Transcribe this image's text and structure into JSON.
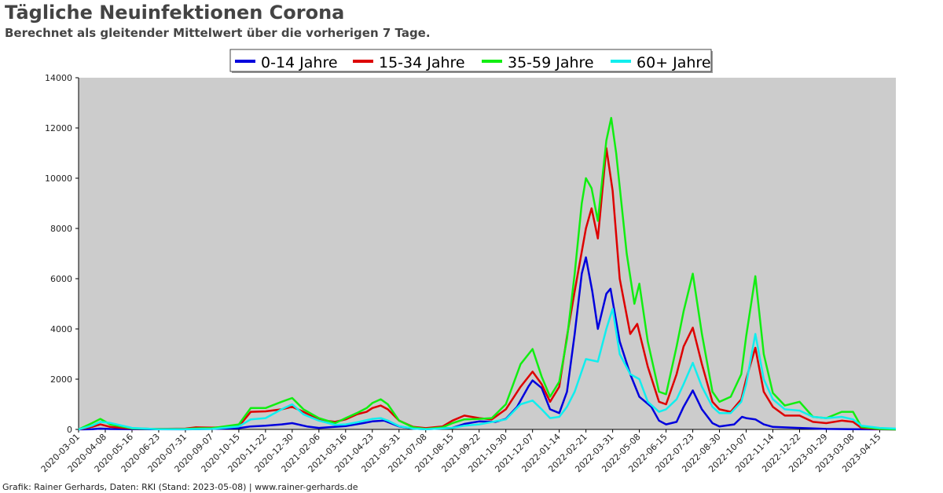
{
  "title": "Tägliche Neuinfektionen Corona",
  "subtitle": "Berechnet als gleitender Mittelwert über die vorherigen 7 Tage.",
  "footer": "Grafik: Rainer Gerhards, Daten: RKI (Stand: 2023-05-08) | www.rainer-gerhards.de",
  "chart_data": {
    "type": "line",
    "plot_background": "#cccccc",
    "xlim": [
      "2020-03-01",
      "2023-05-08"
    ],
    "ylim": [
      0,
      14000
    ],
    "yticks": [
      0,
      2000,
      4000,
      6000,
      8000,
      10000,
      12000,
      14000
    ],
    "xticks": [
      "2020-03-01",
      "2020-04-08",
      "2020-05-16",
      "2020-06-23",
      "2020-07-31",
      "2020-09-07",
      "2020-10-15",
      "2020-11-22",
      "2020-12-30",
      "2021-02-06",
      "2021-03-16",
      "2021-04-23",
      "2021-05-31",
      "2021-07-08",
      "2021-08-15",
      "2021-09-22",
      "2021-10-30",
      "2021-12-07",
      "2022-01-14",
      "2022-02-21",
      "2022-03-31",
      "2022-05-08",
      "2022-06-15",
      "2022-07-23",
      "2022-08-30",
      "2022-10-07",
      "2022-11-14",
      "2022-12-22",
      "2023-01-29",
      "2023-03-08",
      "2023-04-15"
    ],
    "grid": false,
    "legend_position": "top",
    "series": [
      {
        "name": "0-14 Jahre",
        "color": "#0000dd",
        "points": [
          [
            "2020-03-01",
            0
          ],
          [
            "2020-03-20",
            10
          ],
          [
            "2020-04-01",
            30
          ],
          [
            "2020-04-15",
            15
          ],
          [
            "2020-05-16",
            5
          ],
          [
            "2020-07-31",
            3
          ],
          [
            "2020-09-07",
            20
          ],
          [
            "2020-10-15",
            50
          ],
          [
            "2020-11-01",
            120
          ],
          [
            "2020-11-22",
            150
          ],
          [
            "2020-12-15",
            200
          ],
          [
            "2020-12-30",
            250
          ],
          [
            "2021-01-20",
            120
          ],
          [
            "2021-02-06",
            60
          ],
          [
            "2021-03-16",
            130
          ],
          [
            "2021-04-10",
            250
          ],
          [
            "2021-04-23",
            320
          ],
          [
            "2021-05-10",
            350
          ],
          [
            "2021-05-31",
            120
          ],
          [
            "2021-06-20",
            30
          ],
          [
            "2021-07-08",
            10
          ],
          [
            "2021-08-15",
            60
          ],
          [
            "2021-09-01",
            220
          ],
          [
            "2021-09-22",
            320
          ],
          [
            "2021-10-15",
            300
          ],
          [
            "2021-10-30",
            420
          ],
          [
            "2021-11-15",
            900
          ],
          [
            "2021-12-01",
            1700
          ],
          [
            "2021-12-07",
            1950
          ],
          [
            "2021-12-20",
            1650
          ],
          [
            "2022-01-01",
            800
          ],
          [
            "2022-01-14",
            650
          ],
          [
            "2022-01-25",
            1500
          ],
          [
            "2022-02-05",
            3800
          ],
          [
            "2022-02-15",
            6200
          ],
          [
            "2022-02-21",
            6850
          ],
          [
            "2022-03-02",
            5500
          ],
          [
            "2022-03-10",
            4000
          ],
          [
            "2022-03-22",
            5400
          ],
          [
            "2022-03-28",
            5600
          ],
          [
            "2022-04-10",
            3500
          ],
          [
            "2022-04-25",
            2200
          ],
          [
            "2022-05-08",
            1300
          ],
          [
            "2022-05-25",
            900
          ],
          [
            "2022-06-05",
            350
          ],
          [
            "2022-06-15",
            200
          ],
          [
            "2022-06-30",
            300
          ],
          [
            "2022-07-10",
            900
          ],
          [
            "2022-07-23",
            1550
          ],
          [
            "2022-08-05",
            800
          ],
          [
            "2022-08-20",
            250
          ],
          [
            "2022-08-30",
            120
          ],
          [
            "2022-09-20",
            200
          ],
          [
            "2022-10-01",
            500
          ],
          [
            "2022-10-07",
            450
          ],
          [
            "2022-10-20",
            400
          ],
          [
            "2022-11-01",
            200
          ],
          [
            "2022-11-14",
            100
          ],
          [
            "2022-12-22",
            60
          ],
          [
            "2023-01-29",
            20
          ],
          [
            "2023-03-08",
            10
          ],
          [
            "2023-05-08",
            0
          ]
        ]
      },
      {
        "name": "15-34 Jahre",
        "color": "#dd0000",
        "points": [
          [
            "2020-03-01",
            0
          ],
          [
            "2020-03-20",
            100
          ],
          [
            "2020-04-01",
            200
          ],
          [
            "2020-04-15",
            100
          ],
          [
            "2020-05-16",
            30
          ],
          [
            "2020-06-23",
            20
          ],
          [
            "2020-07-31",
            30
          ],
          [
            "2020-08-15",
            80
          ],
          [
            "2020-09-07",
            70
          ],
          [
            "2020-10-15",
            120
          ],
          [
            "2020-11-01",
            700
          ],
          [
            "2020-11-22",
            720
          ],
          [
            "2020-12-15",
            800
          ],
          [
            "2020-12-30",
            900
          ],
          [
            "2021-01-15",
            700
          ],
          [
            "2021-02-06",
            380
          ],
          [
            "2021-03-01",
            300
          ],
          [
            "2021-03-16",
            400
          ],
          [
            "2021-04-01",
            600
          ],
          [
            "2021-04-15",
            700
          ],
          [
            "2021-04-23",
            850
          ],
          [
            "2021-05-05",
            950
          ],
          [
            "2021-05-15",
            800
          ],
          [
            "2021-05-31",
            350
          ],
          [
            "2021-06-20",
            100
          ],
          [
            "2021-07-08",
            50
          ],
          [
            "2021-08-01",
            120
          ],
          [
            "2021-08-15",
            350
          ],
          [
            "2021-09-01",
            550
          ],
          [
            "2021-09-22",
            450
          ],
          [
            "2021-10-10",
            400
          ],
          [
            "2021-10-30",
            800
          ],
          [
            "2021-11-20",
            1700
          ],
          [
            "2021-12-07",
            2300
          ],
          [
            "2021-12-20",
            1800
          ],
          [
            "2022-01-01",
            1100
          ],
          [
            "2022-01-14",
            1700
          ],
          [
            "2022-01-25",
            3700
          ],
          [
            "2022-02-05",
            5500
          ],
          [
            "2022-02-21",
            8000
          ],
          [
            "2022-03-01",
            8800
          ],
          [
            "2022-03-10",
            7600
          ],
          [
            "2022-03-22",
            11200
          ],
          [
            "2022-03-31",
            9500
          ],
          [
            "2022-04-10",
            6000
          ],
          [
            "2022-04-25",
            3800
          ],
          [
            "2022-05-05",
            4200
          ],
          [
            "2022-05-20",
            2500
          ],
          [
            "2022-06-05",
            1100
          ],
          [
            "2022-06-15",
            1000
          ],
          [
            "2022-06-30",
            2200
          ],
          [
            "2022-07-10",
            3300
          ],
          [
            "2022-07-23",
            4050
          ],
          [
            "2022-08-05",
            2600
          ],
          [
            "2022-08-20",
            1100
          ],
          [
            "2022-08-30",
            800
          ],
          [
            "2022-09-15",
            700
          ],
          [
            "2022-09-30",
            1200
          ],
          [
            "2022-10-07",
            2000
          ],
          [
            "2022-10-20",
            3250
          ],
          [
            "2022-11-01",
            1500
          ],
          [
            "2022-11-14",
            900
          ],
          [
            "2022-12-01",
            550
          ],
          [
            "2022-12-22",
            550
          ],
          [
            "2023-01-10",
            300
          ],
          [
            "2023-01-29",
            250
          ],
          [
            "2023-02-20",
            350
          ],
          [
            "2023-03-08",
            300
          ],
          [
            "2023-03-20",
            60
          ],
          [
            "2023-04-15",
            10
          ],
          [
            "2023-05-08",
            0
          ]
        ]
      },
      {
        "name": "35-59 Jahre",
        "color": "#11ee11",
        "points": [
          [
            "2020-03-01",
            0
          ],
          [
            "2020-03-20",
            250
          ],
          [
            "2020-04-01",
            420
          ],
          [
            "2020-04-15",
            200
          ],
          [
            "2020-05-16",
            40
          ],
          [
            "2020-06-23",
            15
          ],
          [
            "2020-07-31",
            20
          ],
          [
            "2020-08-15",
            40
          ],
          [
            "2020-09-07",
            50
          ],
          [
            "2020-10-15",
            200
          ],
          [
            "2020-11-01",
            850
          ],
          [
            "2020-11-22",
            850
          ],
          [
            "2020-12-15",
            1100
          ],
          [
            "2020-12-30",
            1250
          ],
          [
            "2021-01-15",
            800
          ],
          [
            "2021-02-06",
            450
          ],
          [
            "2021-03-01",
            250
          ],
          [
            "2021-03-16",
            450
          ],
          [
            "2021-04-01",
            650
          ],
          [
            "2021-04-15",
            850
          ],
          [
            "2021-04-23",
            1050
          ],
          [
            "2021-05-05",
            1200
          ],
          [
            "2021-05-15",
            1000
          ],
          [
            "2021-05-31",
            350
          ],
          [
            "2021-06-20",
            80
          ],
          [
            "2021-07-08",
            20
          ],
          [
            "2021-08-01",
            80
          ],
          [
            "2021-08-15",
            250
          ],
          [
            "2021-09-01",
            400
          ],
          [
            "2021-09-22",
            420
          ],
          [
            "2021-10-10",
            450
          ],
          [
            "2021-10-30",
            1000
          ],
          [
            "2021-11-20",
            2600
          ],
          [
            "2021-12-07",
            3200
          ],
          [
            "2021-12-20",
            2100
          ],
          [
            "2022-01-01",
            1300
          ],
          [
            "2022-01-14",
            1900
          ],
          [
            "2022-01-25",
            3600
          ],
          [
            "2022-02-05",
            6200
          ],
          [
            "2022-02-15",
            9000
          ],
          [
            "2022-02-21",
            10000
          ],
          [
            "2022-03-01",
            9600
          ],
          [
            "2022-03-10",
            8300
          ],
          [
            "2022-03-22",
            11500
          ],
          [
            "2022-03-29",
            12400
          ],
          [
            "2022-04-05",
            11000
          ],
          [
            "2022-04-20",
            7000
          ],
          [
            "2022-05-01",
            5000
          ],
          [
            "2022-05-08",
            5800
          ],
          [
            "2022-05-20",
            3500
          ],
          [
            "2022-06-05",
            1500
          ],
          [
            "2022-06-15",
            1400
          ],
          [
            "2022-06-30",
            3300
          ],
          [
            "2022-07-10",
            4700
          ],
          [
            "2022-07-23",
            6200
          ],
          [
            "2022-08-05",
            3800
          ],
          [
            "2022-08-20",
            1500
          ],
          [
            "2022-08-30",
            1100
          ],
          [
            "2022-09-15",
            1300
          ],
          [
            "2022-09-30",
            2200
          ],
          [
            "2022-10-07",
            3700
          ],
          [
            "2022-10-20",
            6100
          ],
          [
            "2022-11-01",
            3000
          ],
          [
            "2022-11-14",
            1450
          ],
          [
            "2022-12-01",
            950
          ],
          [
            "2022-12-22",
            1100
          ],
          [
            "2023-01-10",
            500
          ],
          [
            "2023-01-29",
            450
          ],
          [
            "2023-02-20",
            700
          ],
          [
            "2023-03-08",
            700
          ],
          [
            "2023-03-20",
            100
          ],
          [
            "2023-04-15",
            20
          ],
          [
            "2023-05-08",
            0
          ]
        ]
      },
      {
        "name": "60+ Jahre",
        "color": "#11eeee",
        "points": [
          [
            "2020-03-01",
            0
          ],
          [
            "2020-03-20",
            150
          ],
          [
            "2020-04-01",
            300
          ],
          [
            "2020-04-15",
            260
          ],
          [
            "2020-05-16",
            60
          ],
          [
            "2020-06-23",
            10
          ],
          [
            "2020-07-31",
            10
          ],
          [
            "2020-09-07",
            20
          ],
          [
            "2020-10-15",
            120
          ],
          [
            "2020-11-01",
            400
          ],
          [
            "2020-11-22",
            450
          ],
          [
            "2020-12-15",
            800
          ],
          [
            "2020-12-30",
            1000
          ],
          [
            "2021-01-15",
            600
          ],
          [
            "2021-02-06",
            350
          ],
          [
            "2021-03-01",
            180
          ],
          [
            "2021-03-16",
            200
          ],
          [
            "2021-04-01",
            280
          ],
          [
            "2021-04-23",
            420
          ],
          [
            "2021-05-05",
            450
          ],
          [
            "2021-05-15",
            350
          ],
          [
            "2021-05-31",
            130
          ],
          [
            "2021-06-20",
            30
          ],
          [
            "2021-07-08",
            10
          ],
          [
            "2021-08-15",
            60
          ],
          [
            "2021-09-01",
            150
          ],
          [
            "2021-09-22",
            200
          ],
          [
            "2021-10-30",
            400
          ],
          [
            "2021-11-20",
            1000
          ],
          [
            "2021-12-07",
            1150
          ],
          [
            "2021-12-20",
            800
          ],
          [
            "2022-01-01",
            450
          ],
          [
            "2022-01-14",
            500
          ],
          [
            "2022-01-25",
            900
          ],
          [
            "2022-02-05",
            1500
          ],
          [
            "2022-02-21",
            2800
          ],
          [
            "2022-03-10",
            2700
          ],
          [
            "2022-03-22",
            4000
          ],
          [
            "2022-03-31",
            4800
          ],
          [
            "2022-04-10",
            3000
          ],
          [
            "2022-04-25",
            2200
          ],
          [
            "2022-05-08",
            2000
          ],
          [
            "2022-05-20",
            1100
          ],
          [
            "2022-06-05",
            700
          ],
          [
            "2022-06-15",
            800
          ],
          [
            "2022-06-30",
            1200
          ],
          [
            "2022-07-10",
            1800
          ],
          [
            "2022-07-23",
            2650
          ],
          [
            "2022-08-05",
            1700
          ],
          [
            "2022-08-20",
            900
          ],
          [
            "2022-08-30",
            650
          ],
          [
            "2022-09-15",
            650
          ],
          [
            "2022-09-30",
            1100
          ],
          [
            "2022-10-07",
            1800
          ],
          [
            "2022-10-20",
            3800
          ],
          [
            "2022-11-01",
            2000
          ],
          [
            "2022-11-14",
            1200
          ],
          [
            "2022-12-01",
            800
          ],
          [
            "2022-12-22",
            750
          ],
          [
            "2023-01-10",
            500
          ],
          [
            "2023-01-29",
            450
          ],
          [
            "2023-02-20",
            500
          ],
          [
            "2023-03-08",
            400
          ],
          [
            "2023-03-20",
            150
          ],
          [
            "2023-04-15",
            60
          ],
          [
            "2023-05-08",
            30
          ]
        ]
      }
    ]
  }
}
